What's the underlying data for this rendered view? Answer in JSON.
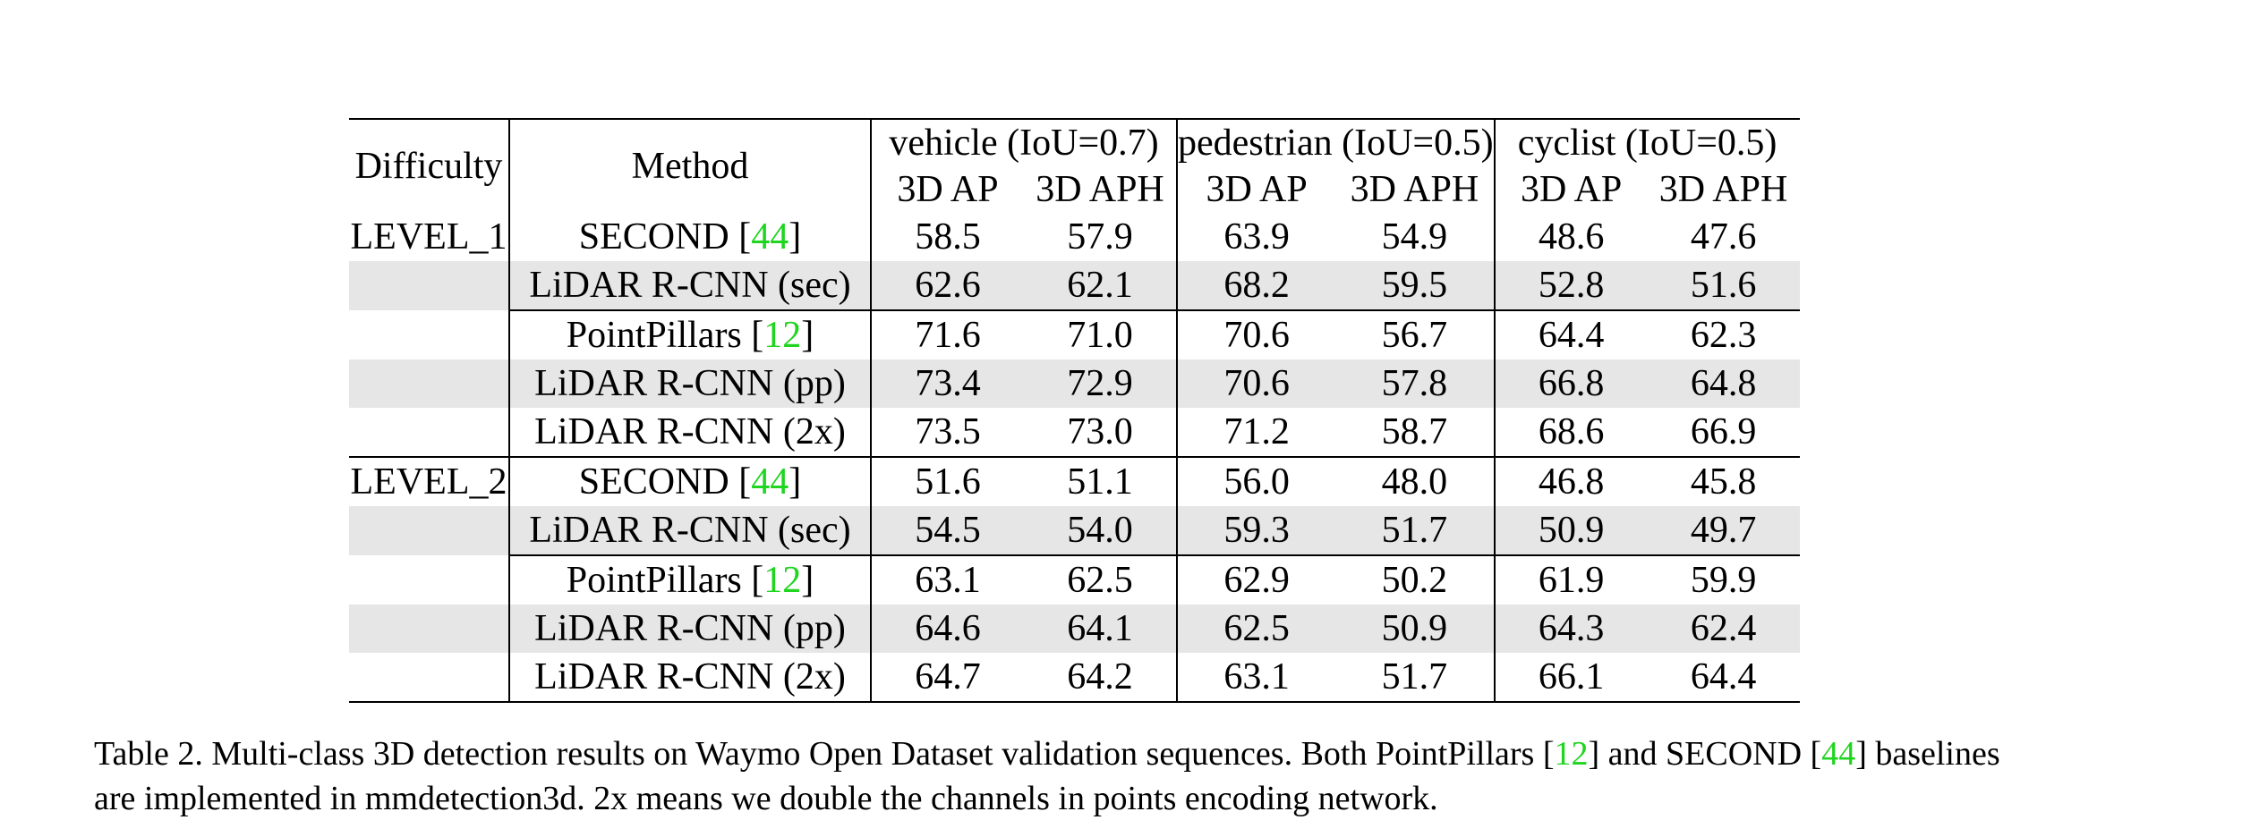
{
  "table": {
    "header": {
      "difficulty": "Difficulty",
      "method": "Method",
      "groups": [
        "vehicle (IoU=0.7)",
        "pedestrian (IoU=0.5)",
        "cyclist (IoU=0.5)"
      ],
      "metrics": [
        "3D AP",
        "3D APH",
        "3D AP",
        "3D APH",
        "3D AP",
        "3D APH"
      ]
    },
    "rows": [
      {
        "difficulty": "LEVEL_1",
        "method": "SECOND [",
        "ref": "44",
        "method_end": "]",
        "values": [
          "58.5",
          "57.9",
          "63.9",
          "54.9",
          "48.6",
          "47.6"
        ]
      },
      {
        "difficulty": "",
        "method": "LiDAR R-CNN (sec)",
        "ref": "",
        "method_end": "",
        "values": [
          "62.6",
          "62.1",
          "68.2",
          "59.5",
          "52.8",
          "51.6"
        ]
      },
      {
        "difficulty": "",
        "method": "PointPillars [",
        "ref": "12",
        "method_end": "]",
        "values": [
          "71.6",
          "71.0",
          "70.6",
          "56.7",
          "64.4",
          "62.3"
        ]
      },
      {
        "difficulty": "",
        "method": "LiDAR R-CNN (pp)",
        "ref": "",
        "method_end": "",
        "values": [
          "73.4",
          "72.9",
          "70.6",
          "57.8",
          "66.8",
          "64.8"
        ]
      },
      {
        "difficulty": "",
        "method": "LiDAR R-CNN (2x)",
        "ref": "",
        "method_end": "",
        "values": [
          "73.5",
          "73.0",
          "71.2",
          "58.7",
          "68.6",
          "66.9"
        ]
      },
      {
        "difficulty": "LEVEL_2",
        "method": "SECOND [",
        "ref": "44",
        "method_end": "]",
        "values": [
          "51.6",
          "51.1",
          "56.0",
          "48.0",
          "46.8",
          "45.8"
        ]
      },
      {
        "difficulty": "",
        "method": "LiDAR R-CNN (sec)",
        "ref": "",
        "method_end": "",
        "values": [
          "54.5",
          "54.0",
          "59.3",
          "51.7",
          "50.9",
          "49.7"
        ]
      },
      {
        "difficulty": "",
        "method": "PointPillars [",
        "ref": "12",
        "method_end": "]",
        "values": [
          "63.1",
          "62.5",
          "62.9",
          "50.2",
          "61.9",
          "59.9"
        ]
      },
      {
        "difficulty": "",
        "method": "LiDAR R-CNN (pp)",
        "ref": "",
        "method_end": "",
        "values": [
          "64.6",
          "64.1",
          "62.5",
          "50.9",
          "64.3",
          "62.4"
        ]
      },
      {
        "difficulty": "",
        "method": "LiDAR R-CNN (2x)",
        "ref": "",
        "method_end": "",
        "values": [
          "64.7",
          "64.2",
          "63.1",
          "51.7",
          "66.1",
          "64.4"
        ]
      }
    ]
  },
  "caption": {
    "line1_a": "Table 2. Multi-class 3D detection results on Waymo Open Dataset validation sequences. Both PointPillars [",
    "ref1": "12",
    "line1_b": "] and SECOND [",
    "ref2": "44",
    "line1_c": "] baselines",
    "line2": "are implemented in mmdetection3d. 2x means we double the channels in points encoding network."
  },
  "colors": {
    "reference_link": "#1fd51f",
    "shaded_row": "#e6e6e6"
  }
}
